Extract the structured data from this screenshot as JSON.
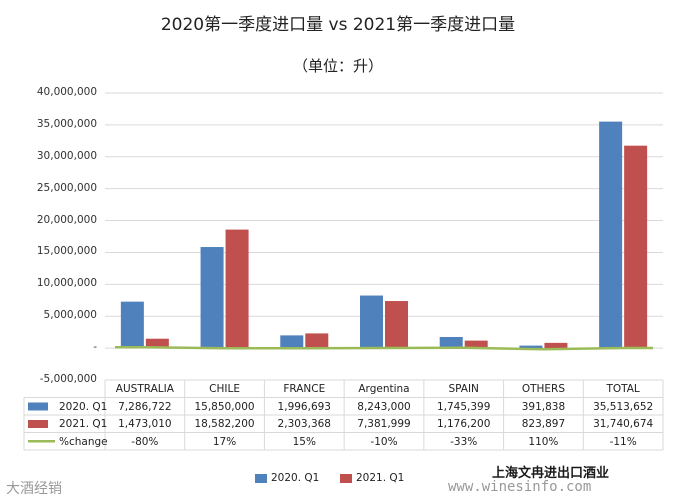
{
  "chart_data": {
    "type": "bar",
    "title": "2020第一季度进口量 vs 2021第一季度进口量",
    "subtitle": "（单位：升）",
    "categories": [
      "AUSTRALIA",
      "CHILE",
      "FRANCE",
      "Argentina",
      "SPAIN",
      "OTHERS",
      "TOTAL"
    ],
    "ylim": [
      -5000000,
      40000000
    ],
    "yticks": [
      -5000000,
      0,
      5000000,
      10000000,
      15000000,
      20000000,
      25000000,
      30000000,
      35000000,
      40000000
    ],
    "ytick_labels": [
      "-5,000,000",
      "-",
      "5,000,000",
      "10,000,000",
      "15,000,000",
      "20,000,000",
      "25,000,000",
      "30,000,000",
      "35,000,000",
      "40,000,000"
    ],
    "series": [
      {
        "name": "2020. Q1",
        "color": "#4f81bd",
        "values": [
          7286722,
          15850000,
          1996693,
          8243000,
          1745399,
          391838,
          35513652
        ],
        "labels": [
          "7,286,722",
          "15,850,000",
          "1,996,693",
          "8,243,000",
          "1,745,399",
          "391,838",
          "35,513,652"
        ]
      },
      {
        "name": "2021. Q1",
        "color": "#c0504d",
        "values": [
          1473010,
          18582200,
          2303368,
          7381999,
          1176200,
          823897,
          31740674
        ],
        "labels": [
          "1,473,010",
          "18,582,200",
          "2,303,368",
          "7,381,999",
          "1,176,200",
          "823,897",
          "31,740,674"
        ]
      },
      {
        "name": "%change",
        "color": "#9bbb59",
        "type": "line",
        "values": [
          -0.8,
          0.17,
          0.15,
          -0.1,
          -0.33,
          1.1,
          -0.11
        ],
        "labels": [
          "-80%",
          "17%",
          "15%",
          "-10%",
          "-33%",
          "110%",
          "-11%"
        ]
      }
    ],
    "legend": [
      "2020. Q1",
      "2021. Q1"
    ],
    "legend_position": "bottom"
  },
  "watermarks": {
    "bottom_left": "大酒经销",
    "bottom_right_cn": "上海文冉进出口酒业",
    "bottom_right_url": "www.winesinfo.com"
  }
}
